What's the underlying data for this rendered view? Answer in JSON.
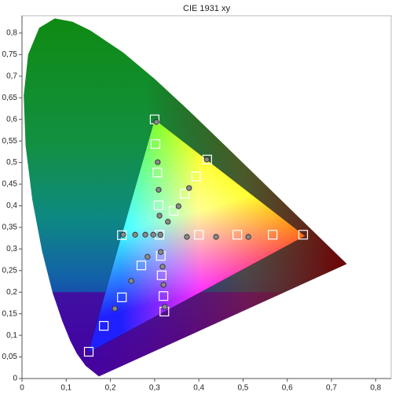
{
  "chart_data": {
    "type": "scatter",
    "title": "CIE 1931 xy",
    "xlim": [
      0,
      0.835
    ],
    "ylim": [
      0,
      0.84
    ],
    "xticks": [
      0,
      {
        "value": 0.1,
        "label": "0,1"
      },
      {
        "value": 0.2,
        "label": "0,2"
      },
      {
        "value": 0.3,
        "label": "0,3"
      },
      {
        "value": 0.4,
        "label": "0,4"
      },
      {
        "value": 0.5,
        "label": "0,5"
      },
      {
        "value": 0.6,
        "label": "0,6"
      },
      {
        "value": 0.7,
        "label": "0,7"
      },
      {
        "value": 0.8,
        "label": "0,8"
      }
    ],
    "yticks": [
      0,
      {
        "value": 0.05,
        "label": "0,05"
      },
      {
        "value": 0.1,
        "label": "0,1"
      },
      {
        "value": 0.15,
        "label": "0,15"
      },
      {
        "value": 0.2,
        "label": "0,2"
      },
      {
        "value": 0.25,
        "label": "0,25"
      },
      {
        "value": 0.3,
        "label": "0,3"
      },
      {
        "value": 0.35,
        "label": "0,35"
      },
      {
        "value": 0.4,
        "label": "0,4"
      },
      {
        "value": 0.45,
        "label": "0,45"
      },
      {
        "value": 0.5,
        "label": "0,5"
      },
      {
        "value": 0.55,
        "label": "0,55"
      },
      {
        "value": 0.6,
        "label": "0,6"
      },
      {
        "value": 0.65,
        "label": "0,65"
      },
      {
        "value": 0.7,
        "label": "0,7"
      },
      {
        "value": 0.75,
        "label": "0,75"
      },
      {
        "value": 0.8,
        "label": "0,8"
      }
    ],
    "grid": false,
    "locus": {
      "x": [
        0.1741,
        0.144,
        0.1241,
        0.1096,
        0.0913,
        0.0687,
        0.0454,
        0.0235,
        0.0082,
        0.0039,
        0.0139,
        0.0389,
        0.0743,
        0.1142,
        0.1547,
        0.2296,
        0.3016,
        0.3731,
        0.4441,
        0.5125,
        0.627,
        0.6915,
        0.7347
      ],
      "y": [
        0.005,
        0.0297,
        0.0578,
        0.0868,
        0.1327,
        0.2007,
        0.295,
        0.4127,
        0.5384,
        0.6548,
        0.7502,
        0.812,
        0.8338,
        0.8262,
        0.8059,
        0.7543,
        0.6923,
        0.6245,
        0.5547,
        0.4866,
        0.3725,
        0.3083,
        0.2653
      ]
    },
    "gamut": {
      "x": [
        0.64,
        0.3,
        0.15
      ],
      "y": [
        0.33,
        0.6,
        0.06
      ]
    },
    "series": [
      {
        "marker": "square",
        "color": "#ffffff",
        "x": [
          0.3,
          0.302,
          0.306,
          0.309,
          0.419,
          0.394,
          0.368,
          0.343,
          0.636,
          0.567,
          0.487,
          0.4,
          0.311,
          0.226,
          0.151,
          0.185,
          0.226,
          0.27,
          0.322,
          0.32,
          0.316,
          0.314
        ],
        "values": [
          0.6,
          0.543,
          0.477,
          0.401,
          0.507,
          0.468,
          0.428,
          0.388,
          0.333,
          0.333,
          0.333,
          0.333,
          0.333,
          0.332,
          0.062,
          0.122,
          0.188,
          0.262,
          0.155,
          0.191,
          0.239,
          0.284
        ]
      },
      {
        "marker": "circle",
        "color": "#8a8a8a",
        "x": [
          0.304,
          0.307,
          0.309,
          0.311,
          0.418,
          0.378,
          0.354,
          0.33,
          0.512,
          0.439,
          0.373,
          0.313,
          0.229,
          0.256,
          0.279,
          0.297,
          0.21,
          0.247,
          0.284,
          0.323,
          0.32,
          0.318,
          0.314
        ],
        "values": [
          0.594,
          0.501,
          0.437,
          0.377,
          0.507,
          0.441,
          0.399,
          0.363,
          0.328,
          0.328,
          0.328,
          0.333,
          0.333,
          0.333,
          0.333,
          0.333,
          0.162,
          0.226,
          0.282,
          0.166,
          0.217,
          0.259,
          0.293
        ]
      }
    ]
  }
}
